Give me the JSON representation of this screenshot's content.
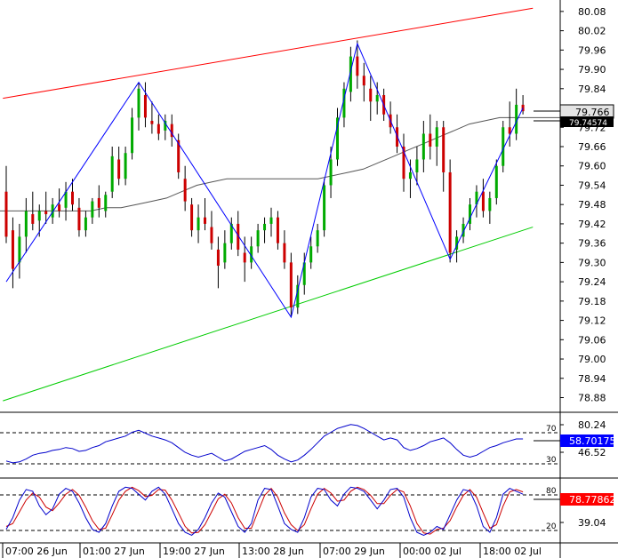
{
  "chart_data": [
    {
      "type": "candlestick",
      "panel": "price",
      "ylim": [
        78.84,
        80.11
      ],
      "y_ticks": [
        "80.08",
        "80.02",
        "79.96",
        "79.90",
        "79.84",
        "79.78",
        "79.72",
        "79.66",
        "79.60",
        "79.54",
        "79.48",
        "79.42",
        "79.36",
        "79.30",
        "79.24",
        "79.18",
        "79.12",
        "79.06",
        "79.00",
        "78.94",
        "78.88"
      ],
      "current_price": "79.766",
      "secondary_price": "79.74574",
      "colors": {
        "up": "#00aa00",
        "down": "#cc0000",
        "wick": "#000000",
        "zigzag": "#0000ff",
        "resistance": "#ff0000",
        "support": "#00cc00",
        "ma": "#555555"
      },
      "candles": [
        [
          79.52,
          79.6,
          79.36,
          79.38
        ],
        [
          79.4,
          79.44,
          79.22,
          79.28
        ],
        [
          79.3,
          79.42,
          79.25,
          79.38
        ],
        [
          79.38,
          79.5,
          79.33,
          79.46
        ],
        [
          79.45,
          79.52,
          79.4,
          79.42
        ],
        [
          79.43,
          79.48,
          79.38,
          79.46
        ],
        [
          79.46,
          79.52,
          79.42,
          79.45
        ],
        [
          79.44,
          79.5,
          79.42,
          79.48
        ],
        [
          79.48,
          79.53,
          79.44,
          79.46
        ],
        [
          79.47,
          79.55,
          79.43,
          79.52
        ],
        [
          79.52,
          79.56,
          79.46,
          79.48
        ],
        [
          79.47,
          79.5,
          79.38,
          79.4
        ],
        [
          79.4,
          79.46,
          79.38,
          79.44
        ],
        [
          79.44,
          79.5,
          79.42,
          79.49
        ],
        [
          79.5,
          79.54,
          79.44,
          79.47
        ],
        [
          79.46,
          79.52,
          79.44,
          79.51
        ],
        [
          79.52,
          79.66,
          79.5,
          79.63
        ],
        [
          79.62,
          79.66,
          79.54,
          79.56
        ],
        [
          79.56,
          79.66,
          79.54,
          79.64
        ],
        [
          79.64,
          79.78,
          79.62,
          79.75
        ],
        [
          79.75,
          79.86,
          79.71,
          79.84
        ],
        [
          79.82,
          79.86,
          79.72,
          79.75
        ],
        [
          79.74,
          79.8,
          79.7,
          79.73
        ],
        [
          79.73,
          79.76,
          79.68,
          79.7
        ],
        [
          79.71,
          79.76,
          79.68,
          79.74
        ],
        [
          79.73,
          79.76,
          79.66,
          79.69
        ],
        [
          79.68,
          79.7,
          79.56,
          79.58
        ],
        [
          79.56,
          79.6,
          79.46,
          79.49
        ],
        [
          79.48,
          79.5,
          79.38,
          79.4
        ],
        [
          79.4,
          79.48,
          79.36,
          79.44
        ],
        [
          79.44,
          79.5,
          79.4,
          79.42
        ],
        [
          79.41,
          79.46,
          79.34,
          79.36
        ],
        [
          79.34,
          79.38,
          79.22,
          79.29
        ],
        [
          79.3,
          79.4,
          79.28,
          79.36
        ],
        [
          79.36,
          79.44,
          79.34,
          79.42
        ],
        [
          79.42,
          79.46,
          79.32,
          79.34
        ],
        [
          79.33,
          79.38,
          79.24,
          79.3
        ],
        [
          79.3,
          79.38,
          79.28,
          79.35
        ],
        [
          79.35,
          79.42,
          79.33,
          79.4
        ],
        [
          79.4,
          79.44,
          79.36,
          79.42
        ],
        [
          79.42,
          79.47,
          79.38,
          79.44
        ],
        [
          79.44,
          79.46,
          79.34,
          79.36
        ],
        [
          79.36,
          79.4,
          79.28,
          79.3
        ],
        [
          79.3,
          79.33,
          79.13,
          79.16
        ],
        [
          79.16,
          79.26,
          79.14,
          79.23
        ],
        [
          79.23,
          79.33,
          79.2,
          79.3
        ],
        [
          79.3,
          79.38,
          79.28,
          79.35
        ],
        [
          79.35,
          79.42,
          79.33,
          79.4
        ],
        [
          79.4,
          79.56,
          79.38,
          79.54
        ],
        [
          79.54,
          79.66,
          79.5,
          79.62
        ],
        [
          79.62,
          79.78,
          79.6,
          79.75
        ],
        [
          79.75,
          79.86,
          79.72,
          79.84
        ],
        [
          79.83,
          79.97,
          79.8,
          79.94
        ],
        [
          79.94,
          79.99,
          79.84,
          79.88
        ],
        [
          79.88,
          79.92,
          79.8,
          79.85
        ],
        [
          79.84,
          79.88,
          79.74,
          79.8
        ],
        [
          79.8,
          79.86,
          79.76,
          79.82
        ],
        [
          79.82,
          79.84,
          79.74,
          79.76
        ],
        [
          79.76,
          79.8,
          79.7,
          79.72
        ],
        [
          79.72,
          79.76,
          79.64,
          79.66
        ],
        [
          79.66,
          79.7,
          79.52,
          79.56
        ],
        [
          79.56,
          79.62,
          79.5,
          79.58
        ],
        [
          79.58,
          79.66,
          79.54,
          79.62
        ],
        [
          79.62,
          79.74,
          79.58,
          79.7
        ],
        [
          79.7,
          79.76,
          79.62,
          79.66
        ],
        [
          79.66,
          79.74,
          79.6,
          79.72
        ],
        [
          79.72,
          79.74,
          79.52,
          79.58
        ],
        [
          79.58,
          79.62,
          79.3,
          79.33
        ],
        [
          79.34,
          79.4,
          79.3,
          79.38
        ],
        [
          79.38,
          79.44,
          79.36,
          79.42
        ],
        [
          79.42,
          79.5,
          79.4,
          79.48
        ],
        [
          79.48,
          79.54,
          79.44,
          79.52
        ],
        [
          79.52,
          79.56,
          79.44,
          79.46
        ],
        [
          79.46,
          79.52,
          79.42,
          79.5
        ],
        [
          79.5,
          79.62,
          79.48,
          79.6
        ],
        [
          79.6,
          79.74,
          79.58,
          79.72
        ],
        [
          79.72,
          79.8,
          79.66,
          79.7
        ],
        [
          79.7,
          79.84,
          79.68,
          79.79
        ],
        [
          79.79,
          79.82,
          79.76,
          79.77
        ]
      ],
      "moving_average": [
        79.46,
        79.46,
        79.46,
        79.46,
        79.46,
        79.46,
        79.46,
        79.47,
        79.47,
        79.48,
        79.49,
        79.5,
        79.52,
        79.54,
        79.55,
        79.56,
        79.56,
        79.56,
        79.56,
        79.56,
        79.56,
        79.56,
        79.57,
        79.58,
        79.59,
        79.61,
        79.63,
        79.65,
        79.67,
        79.69,
        79.71,
        79.73,
        79.74,
        79.75,
        79.75,
        79.75,
        79.75,
        79.75
      ],
      "zigzag": [
        [
          0,
          79.24
        ],
        [
          20,
          79.86
        ],
        [
          43,
          79.13
        ],
        [
          53,
          79.98
        ],
        [
          67,
          79.31
        ],
        [
          78,
          79.78
        ]
      ],
      "resistance_line": [
        [
          -0.5,
          79.81
        ],
        [
          79.5,
          80.09
        ]
      ],
      "support_line": [
        [
          -0.5,
          78.87
        ],
        [
          79.5,
          79.41
        ]
      ],
      "x_labels": [
        "07:00 26 Jun",
        "01:00 27 Jun",
        "19:00 27 Jun",
        "13:00 28 Jun",
        "07:00 29 Jun",
        "00:00 02 Jul",
        "18:00 02 Jul"
      ]
    },
    {
      "type": "line",
      "panel": "rsi",
      "levels": [
        "70",
        "30"
      ],
      "y_tick": "46.52",
      "top_tick": "80.24",
      "current_value": "58.70175",
      "ylim": [
        20,
        85
      ],
      "values": [
        36,
        34,
        35,
        38,
        42,
        44,
        45,
        47,
        48,
        50,
        49,
        46,
        47,
        50,
        52,
        56,
        58,
        60,
        62,
        66,
        68,
        65,
        62,
        60,
        58,
        55,
        50,
        45,
        42,
        40,
        42,
        44,
        40,
        36,
        38,
        42,
        46,
        48,
        50,
        52,
        48,
        42,
        38,
        35,
        37,
        42,
        48,
        55,
        62,
        66,
        70,
        72,
        74,
        73,
        70,
        66,
        62,
        58,
        60,
        58,
        50,
        47,
        49,
        52,
        56,
        58,
        60,
        55,
        48,
        42,
        40,
        42,
        46,
        50,
        52,
        55,
        57,
        59,
        59
      ]
    },
    {
      "type": "line",
      "panel": "stochastic",
      "levels": [
        "80",
        "20"
      ],
      "y_tick": "39.04",
      "current_value": "78.77862",
      "ylim": [
        0,
        100
      ],
      "main": [
        20,
        40,
        70,
        88,
        85,
        60,
        45,
        55,
        80,
        90,
        85,
        65,
        40,
        20,
        15,
        30,
        60,
        85,
        92,
        90,
        80,
        70,
        85,
        92,
        80,
        55,
        30,
        15,
        10,
        20,
        40,
        65,
        82,
        75,
        50,
        25,
        15,
        30,
        70,
        90,
        88,
        60,
        30,
        20,
        15,
        40,
        75,
        90,
        88,
        70,
        60,
        80,
        92,
        90,
        85,
        70,
        55,
        70,
        88,
        90,
        75,
        40,
        15,
        10,
        15,
        25,
        20,
        45,
        70,
        88,
        85,
        60,
        25,
        15,
        40,
        80,
        90,
        85,
        80
      ],
      "signal": [
        25,
        30,
        50,
        70,
        82,
        75,
        58,
        52,
        65,
        80,
        88,
        78,
        58,
        35,
        20,
        22,
        45,
        70,
        85,
        92,
        86,
        76,
        78,
        88,
        87,
        70,
        48,
        25,
        14,
        15,
        28,
        50,
        72,
        80,
        65,
        40,
        22,
        22,
        50,
        78,
        90,
        75,
        48,
        28,
        18,
        28,
        55,
        80,
        90,
        82,
        68,
        70,
        85,
        92,
        88,
        78,
        64,
        64,
        78,
        88,
        84,
        60,
        30,
        14,
        12,
        20,
        22,
        35,
        58,
        78,
        88,
        75,
        48,
        22,
        28,
        60,
        84,
        88,
        84
      ]
    }
  ]
}
